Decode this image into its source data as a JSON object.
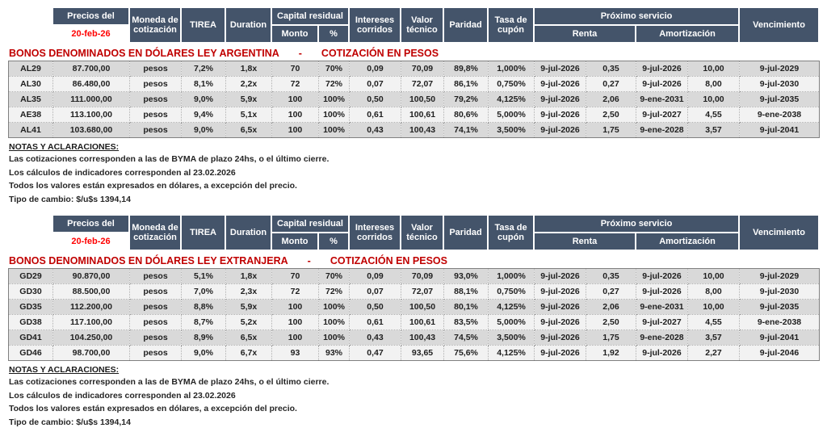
{
  "header": {
    "precios_del": "Precios del",
    "fecha": "20-feb-26",
    "moneda_cotizacion": "Moneda de cotización",
    "tirea": "TIREA",
    "duration": "Duration",
    "capital_residual": "Capital residual",
    "monto": "Monto",
    "porcentaje": "%",
    "intereses_corridos": "Intereses corridos",
    "valor_tecnico": "Valor técnico",
    "paridad": "Paridad",
    "tasa_cupon": "Tasa de cupón",
    "proximo_servicio": "Próximo servicio",
    "renta": "Renta",
    "amortizacion": "Amortización",
    "vencimiento": "Vencimiento"
  },
  "colors": {
    "header_bg": "#44546A",
    "header_text": "#FFFFFF",
    "date_text": "#FF0000",
    "title_text": "#C00000",
    "row_stripe_dark": "#D9D9D9",
    "row_stripe_light": "#F2F2F2"
  },
  "sections": [
    {
      "title_left": "BONOS DENOMINADOS EN DÓLARES LEY ARGENTINA",
      "title_dash": "-",
      "title_right": "COTIZACIÓN EN PESOS",
      "rows": [
        [
          "AL29",
          "87.700,00",
          "pesos",
          "7,2%",
          "1,8x",
          "70",
          "70%",
          "0,09",
          "70,09",
          "89,8%",
          "1,000%",
          "9-jul-2026",
          "0,35",
          "9-jul-2026",
          "10,00",
          "9-jul-2029"
        ],
        [
          "AL30",
          "86.480,00",
          "pesos",
          "8,1%",
          "2,2x",
          "72",
          "72%",
          "0,07",
          "72,07",
          "86,1%",
          "0,750%",
          "9-jul-2026",
          "0,27",
          "9-jul-2026",
          "8,00",
          "9-jul-2030"
        ],
        [
          "AL35",
          "111.000,00",
          "pesos",
          "9,0%",
          "5,9x",
          "100",
          "100%",
          "0,50",
          "100,50",
          "79,2%",
          "4,125%",
          "9-jul-2026",
          "2,06",
          "9-ene-2031",
          "10,00",
          "9-jul-2035"
        ],
        [
          "AE38",
          "113.100,00",
          "pesos",
          "9,4%",
          "5,1x",
          "100",
          "100%",
          "0,61",
          "100,61",
          "80,6%",
          "5,000%",
          "9-jul-2026",
          "2,50",
          "9-jul-2027",
          "4,55",
          "9-ene-2038"
        ],
        [
          "AL41",
          "103.680,00",
          "pesos",
          "9,0%",
          "6,5x",
          "100",
          "100%",
          "0,43",
          "100,43",
          "74,1%",
          "3,500%",
          "9-jul-2026",
          "1,75",
          "9-ene-2028",
          "3,57",
          "9-jul-2041"
        ]
      ]
    },
    {
      "title_left": "BONOS DENOMINADOS EN DÓLARES LEY EXTRANJERA",
      "title_dash": "-",
      "title_right": "COTIZACIÓN EN PESOS",
      "rows": [
        [
          "GD29",
          "90.870,00",
          "pesos",
          "5,1%",
          "1,8x",
          "70",
          "70%",
          "0,09",
          "70,09",
          "93,0%",
          "1,000%",
          "9-jul-2026",
          "0,35",
          "9-jul-2026",
          "10,00",
          "9-jul-2029"
        ],
        [
          "GD30",
          "88.500,00",
          "pesos",
          "7,0%",
          "2,3x",
          "72",
          "72%",
          "0,07",
          "72,07",
          "88,1%",
          "0,750%",
          "9-jul-2026",
          "0,27",
          "9-jul-2026",
          "8,00",
          "9-jul-2030"
        ],
        [
          "GD35",
          "112.200,00",
          "pesos",
          "8,8%",
          "5,9x",
          "100",
          "100%",
          "0,50",
          "100,50",
          "80,1%",
          "4,125%",
          "9-jul-2026",
          "2,06",
          "9-ene-2031",
          "10,00",
          "9-jul-2035"
        ],
        [
          "GD38",
          "117.100,00",
          "pesos",
          "8,7%",
          "5,2x",
          "100",
          "100%",
          "0,61",
          "100,61",
          "83,5%",
          "5,000%",
          "9-jul-2026",
          "2,50",
          "9-jul-2027",
          "4,55",
          "9-ene-2038"
        ],
        [
          "GD41",
          "104.250,00",
          "pesos",
          "8,9%",
          "6,5x",
          "100",
          "100%",
          "0,43",
          "100,43",
          "74,5%",
          "3,500%",
          "9-jul-2026",
          "1,75",
          "9-ene-2028",
          "3,57",
          "9-jul-2041"
        ],
        [
          "GD46",
          "98.700,00",
          "pesos",
          "9,0%",
          "6,7x",
          "93",
          "93%",
          "0,47",
          "93,65",
          "75,6%",
          "4,125%",
          "9-jul-2026",
          "1,92",
          "9-jul-2026",
          "2,27",
          "9-jul-2046"
        ]
      ]
    }
  ],
  "notes": {
    "heading": "NOTAS Y ACLARACIONES:",
    "lines": [
      "Las cotizaciones corresponden a las de BYMA de plazo 24hs, o el último cierre.",
      "Los cálculos de indicadores corresponden al 23.02.2026",
      "Todos los valores están expresados en dólares, a excepción del precio.",
      "Tipo de cambio: $/u$s 1394,14"
    ]
  }
}
